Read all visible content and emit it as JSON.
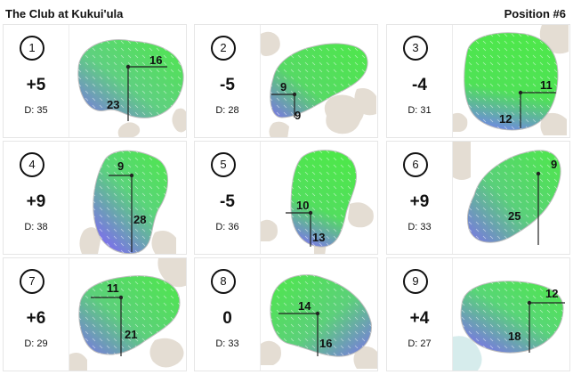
{
  "header": {
    "course": "The Club at Kukui'ula",
    "position": "Position #6"
  },
  "holes": [
    {
      "number": "1",
      "score": "+5",
      "distance": "D: 35",
      "measure_a": "16",
      "measure_b": "23"
    },
    {
      "number": "2",
      "score": "-5",
      "distance": "D: 28",
      "measure_a": "9",
      "measure_b": "9"
    },
    {
      "number": "3",
      "score": "-4",
      "distance": "D: 31",
      "measure_a": "11",
      "measure_b": "12"
    },
    {
      "number": "4",
      "score": "+9",
      "distance": "D: 38",
      "measure_a": "9",
      "measure_b": "28"
    },
    {
      "number": "5",
      "score": "-5",
      "distance": "D: 36",
      "measure_a": "10",
      "measure_b": "13"
    },
    {
      "number": "6",
      "score": "+9",
      "distance": "D: 33",
      "measure_a": "9",
      "measure_b": "25"
    },
    {
      "number": "7",
      "score": "+6",
      "distance": "D: 29",
      "measure_a": "11",
      "measure_b": "21"
    },
    {
      "number": "8",
      "score": "0",
      "distance": "D: 33",
      "measure_a": "14",
      "measure_b": "16"
    },
    {
      "number": "9",
      "score": "+4",
      "distance": "D: 27",
      "measure_a": "12",
      "measure_b": "18"
    }
  ],
  "colors": {
    "green_light": "#4ee84a",
    "green_mid": "#5fd080",
    "slope_blue": "#7b73e8",
    "bunker": "#e4ddd3",
    "water": "#d6ecec",
    "line": "#222222"
  }
}
